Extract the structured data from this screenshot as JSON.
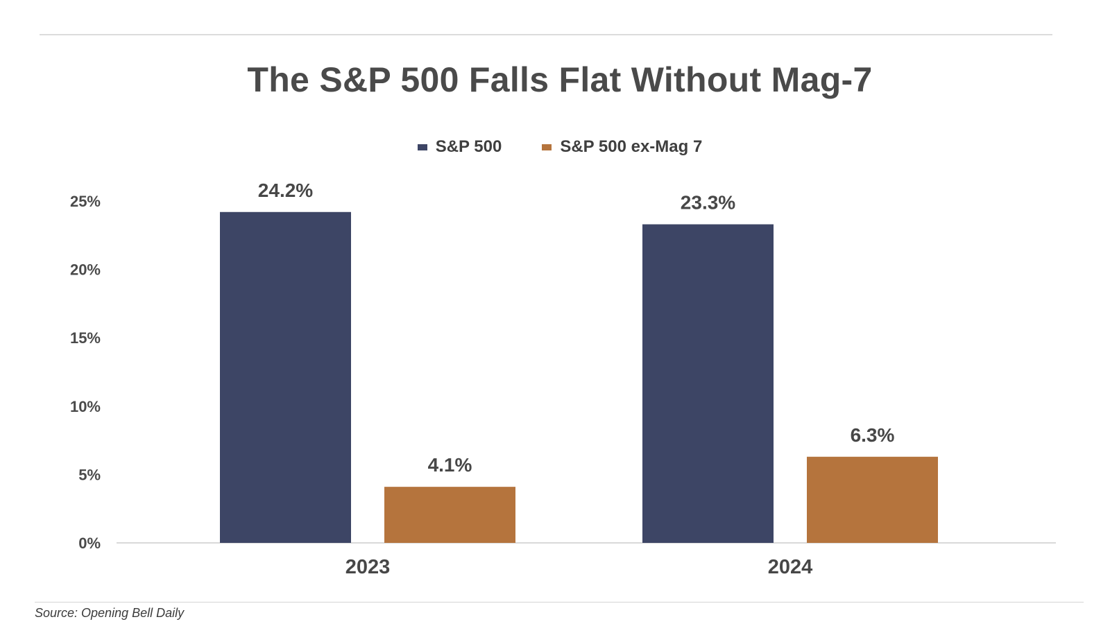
{
  "chart_data": {
    "type": "bar",
    "title": "The S&P 500 Falls Flat Without Mag-7",
    "categories": [
      "2023",
      "2024"
    ],
    "series": [
      {
        "name": "S&P 500",
        "values": [
          24.2,
          23.3
        ],
        "labels": [
          "24.2%",
          "23.3%"
        ],
        "color": "#3d4565"
      },
      {
        "name": "S&P 500 ex-Mag 7",
        "values": [
          4.1,
          6.3
        ],
        "labels": [
          "4.1%",
          "6.3%"
        ],
        "color": "#b5743d"
      }
    ],
    "yticks": [
      "0%",
      "5%",
      "10%",
      "15%",
      "20%",
      "25%"
    ],
    "ytick_values": [
      0,
      5,
      10,
      15,
      20,
      25
    ],
    "ylim": [
      0,
      25
    ],
    "legend_position": "top-center",
    "grid": false
  },
  "source": "Source: Opening Bell Daily"
}
